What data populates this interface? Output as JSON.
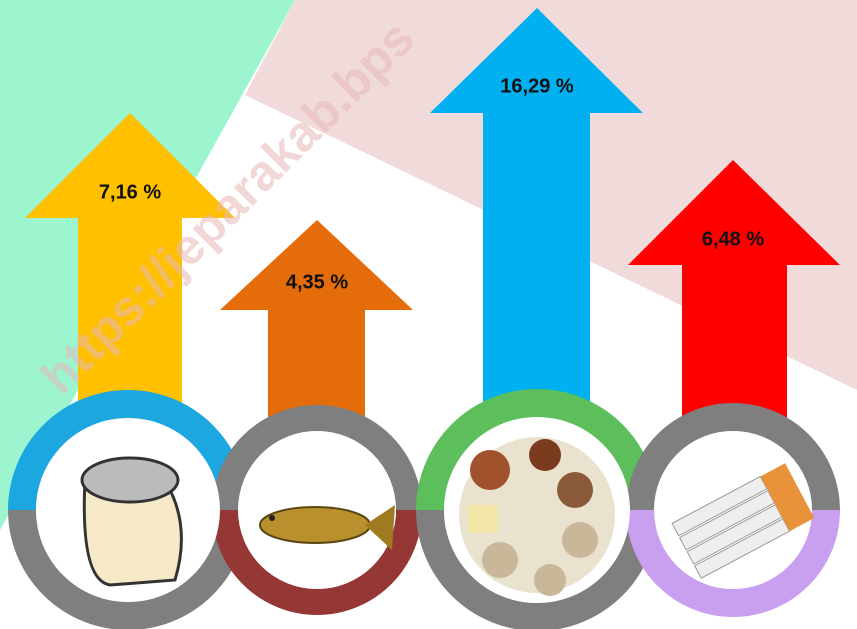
{
  "items": [
    {
      "label": "7,16 %"
    },
    {
      "label": "4,35 %"
    },
    {
      "label": "16,29 %"
    },
    {
      "label": "6,48 %"
    }
  ],
  "watermark": "https://jeparakab.bps"
}
